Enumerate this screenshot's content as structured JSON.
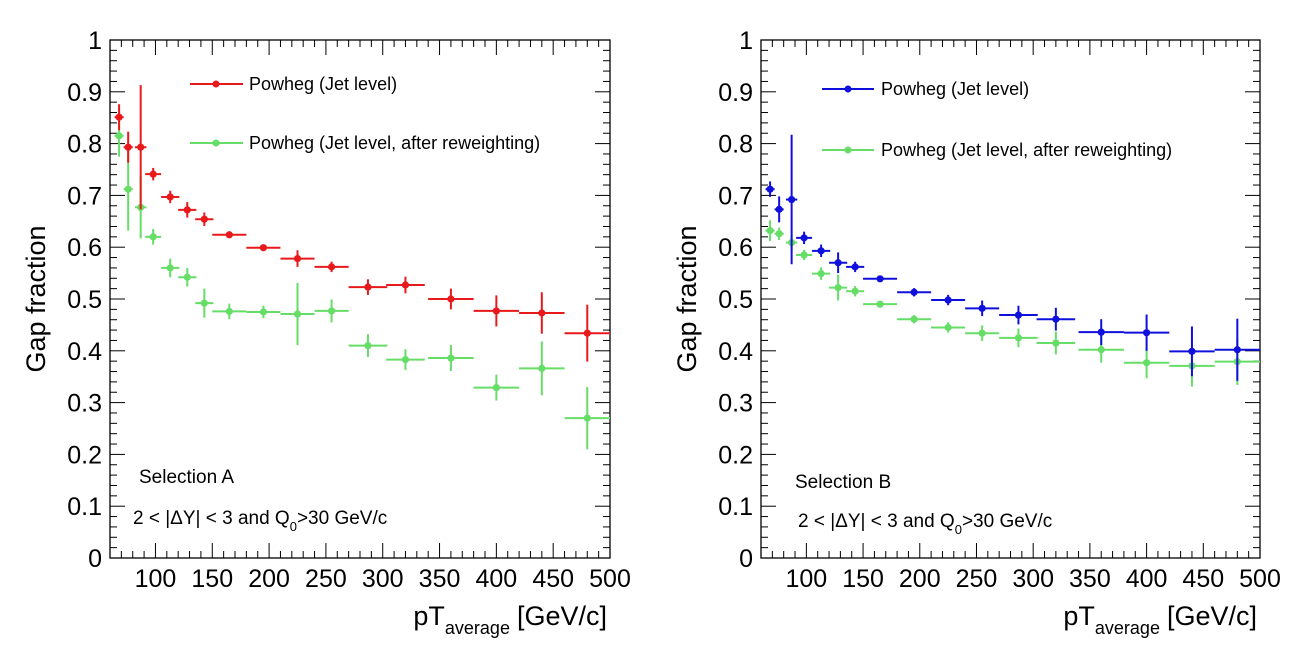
{
  "chart_data": [
    {
      "type": "scatter",
      "ylabel": "Gap fraction",
      "xlabel": {
        "main": "pT",
        "sub": "average",
        "unit": "[GeV/c]"
      },
      "xlim": [
        60,
        500
      ],
      "ylim": [
        0,
        1
      ],
      "x_ticks": [
        "100",
        "150",
        "200",
        "250",
        "300",
        "350",
        "400",
        "450",
        "500"
      ],
      "y_ticks": [
        "0",
        "0.1",
        "0.2",
        "0.3",
        "0.4",
        "0.5",
        "0.6",
        "0.7",
        "0.8",
        "0.9",
        "1"
      ],
      "annotation_title": "Selection A",
      "annotation_cut": {
        "pre": "2 < |ΔY| < 3 and Q",
        "sub": "0",
        "post": ">30 GeV/c"
      },
      "legend_position": "top-right",
      "series": [
        {
          "name": "Powheg (Jet level)",
          "color": "#e8191b",
          "points": [
            [
              68,
              0.851,
              4,
              0.025
            ],
            [
              76,
              0.793,
              4,
              0.03
            ],
            [
              87,
              0.793,
              5,
              0.12
            ],
            [
              98,
              0.741,
              7,
              0.012
            ],
            [
              113,
              0.697,
              8,
              0.012
            ],
            [
              128,
              0.672,
              8,
              0.015
            ],
            [
              143,
              0.654,
              8,
              0.013
            ],
            [
              165,
              0.624,
              15,
              0.006
            ],
            [
              195,
              0.599,
              15,
              0.006
            ],
            [
              225,
              0.578,
              15,
              0.016
            ],
            [
              255,
              0.562,
              15,
              0.01
            ],
            [
              287,
              0.523,
              17,
              0.015
            ],
            [
              320,
              0.527,
              17,
              0.016
            ],
            [
              360,
              0.5,
              20,
              0.02
            ],
            [
              400,
              0.477,
              20,
              0.03
            ],
            [
              440,
              0.473,
              20,
              0.04
            ],
            [
              480,
              0.434,
              20,
              0.055
            ]
          ]
        },
        {
          "name": "Powheg (Jet level, after reweighting)",
          "color": "#66dd66",
          "points": [
            [
              68,
              0.815,
              4,
              0.04
            ],
            [
              76,
              0.712,
              4,
              0.08
            ],
            [
              87,
              0.677,
              5,
              0.06
            ],
            [
              98,
              0.62,
              7,
              0.015
            ],
            [
              113,
              0.56,
              8,
              0.018
            ],
            [
              128,
              0.542,
              8,
              0.018
            ],
            [
              143,
              0.492,
              8,
              0.028
            ],
            [
              165,
              0.476,
              15,
              0.015
            ],
            [
              195,
              0.475,
              15,
              0.012
            ],
            [
              225,
              0.471,
              15,
              0.06
            ],
            [
              255,
              0.477,
              15,
              0.022
            ],
            [
              287,
              0.41,
              17,
              0.022
            ],
            [
              320,
              0.383,
              17,
              0.02
            ],
            [
              360,
              0.386,
              20,
              0.025
            ],
            [
              400,
              0.329,
              20,
              0.025
            ],
            [
              440,
              0.366,
              20,
              0.052
            ],
            [
              480,
              0.27,
              20,
              0.06
            ]
          ]
        }
      ]
    },
    {
      "type": "scatter",
      "ylabel": "Gap fraction",
      "xlabel": {
        "main": "pT",
        "sub": "average",
        "unit": "[GeV/c]"
      },
      "xlim": [
        60,
        500
      ],
      "ylim": [
        0,
        1
      ],
      "x_ticks": [
        "100",
        "150",
        "200",
        "250",
        "300",
        "350",
        "400",
        "450",
        "500"
      ],
      "y_ticks": [
        "0",
        "0.1",
        "0.2",
        "0.3",
        "0.4",
        "0.5",
        "0.6",
        "0.7",
        "0.8",
        "0.9",
        "1"
      ],
      "annotation_title": "Selection B",
      "annotation_cut": {
        "pre": "2 < |ΔY| < 3 and Q",
        "sub": "0",
        "post": ">30 GeV/c"
      },
      "legend_position": "top-right",
      "series": [
        {
          "name": "Powheg (Jet level)",
          "color": "#1010dd",
          "points": [
            [
              68,
              0.712,
              4,
              0.015
            ],
            [
              76,
              0.673,
              4,
              0.025
            ],
            [
              87,
              0.692,
              5,
              0.125
            ],
            [
              98,
              0.618,
              7,
              0.012
            ],
            [
              113,
              0.593,
              8,
              0.012
            ],
            [
              128,
              0.57,
              8,
              0.02
            ],
            [
              143,
              0.562,
              8,
              0.01
            ],
            [
              165,
              0.539,
              15,
              0.006
            ],
            [
              195,
              0.513,
              15,
              0.008
            ],
            [
              225,
              0.498,
              15,
              0.01
            ],
            [
              255,
              0.482,
              15,
              0.015
            ],
            [
              287,
              0.469,
              17,
              0.018
            ],
            [
              320,
              0.461,
              17,
              0.022
            ],
            [
              360,
              0.436,
              20,
              0.025
            ],
            [
              400,
              0.435,
              20,
              0.035
            ],
            [
              440,
              0.399,
              20,
              0.048
            ],
            [
              480,
              0.402,
              20,
              0.06
            ]
          ]
        },
        {
          "name": "Powheg (Jet level, after reweighting)",
          "color": "#66dd66",
          "points": [
            [
              68,
              0.632,
              4,
              0.02
            ],
            [
              76,
              0.626,
              4,
              0.012
            ],
            [
              87,
              0.609,
              5,
              0.015
            ],
            [
              98,
              0.585,
              7,
              0.01
            ],
            [
              113,
              0.549,
              8,
              0.012
            ],
            [
              128,
              0.522,
              8,
              0.025
            ],
            [
              143,
              0.515,
              8,
              0.01
            ],
            [
              165,
              0.49,
              15,
              0.006
            ],
            [
              195,
              0.461,
              15,
              0.008
            ],
            [
              225,
              0.445,
              15,
              0.01
            ],
            [
              255,
              0.434,
              15,
              0.015
            ],
            [
              287,
              0.425,
              17,
              0.018
            ],
            [
              320,
              0.415,
              17,
              0.022
            ],
            [
              360,
              0.402,
              20,
              0.025
            ],
            [
              400,
              0.377,
              20,
              0.03
            ],
            [
              440,
              0.371,
              20,
              0.04
            ],
            [
              480,
              0.379,
              20,
              0.045
            ]
          ]
        }
      ]
    }
  ]
}
